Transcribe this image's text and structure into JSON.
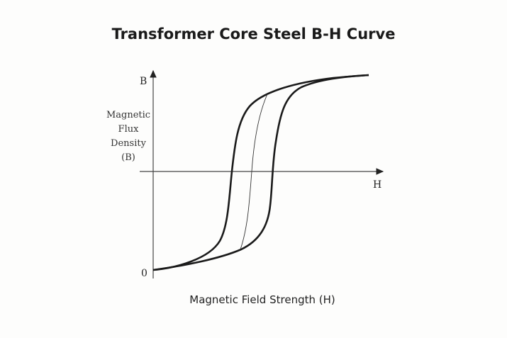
{
  "title": "Transformer Core Steel B-H Curve",
  "chart_data": {
    "type": "diagram",
    "title": "Transformer Core Steel B-H Curve",
    "xlabel": "Magnetic Field Strength (H)",
    "x_axis_letter": "H",
    "y_axis_letter": "B",
    "ylabel_lines": [
      "Magnetic",
      "Flux",
      "Density",
      "(B)"
    ],
    "origin_label": "0",
    "curves": [
      "ascending-branch",
      "descending-branch",
      "initial-magnetization-curve"
    ],
    "line_color": "#1a1a1a"
  }
}
